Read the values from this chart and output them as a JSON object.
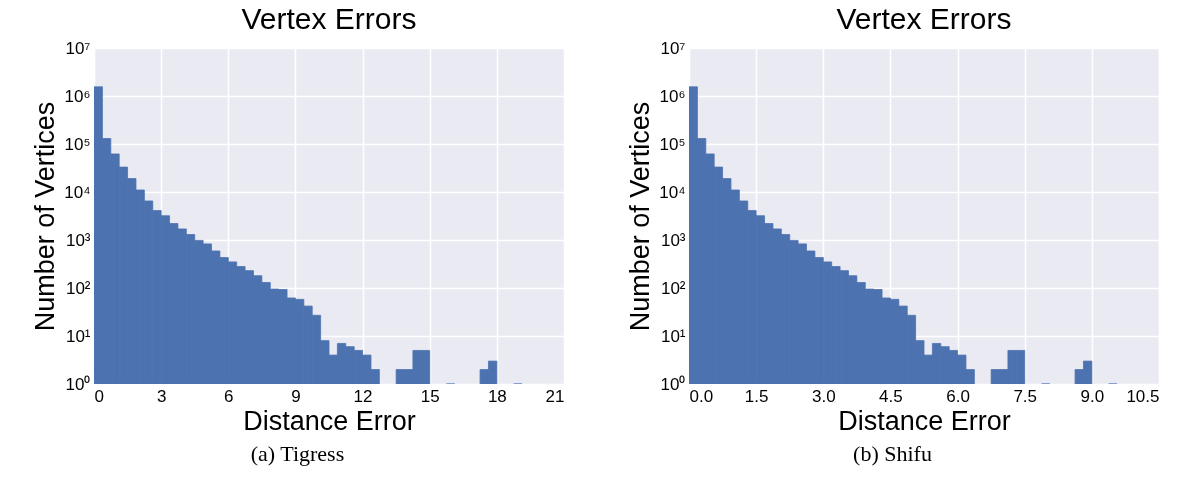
{
  "chart_data": [
    {
      "type": "histogram",
      "title": "Vertex Errors",
      "xlabel": "Distance Error",
      "ylabel": "Number of Vertices",
      "color": "#4c72b0",
      "log": "y",
      "grid": true,
      "bins": [
        0,
        0.375,
        0.75,
        1.125,
        1.5,
        1.875,
        2.25,
        2.625,
        3,
        3.375,
        3.75,
        4.125,
        4.5,
        4.875,
        5.25,
        5.625,
        6,
        6.375,
        6.75,
        7.125,
        7.5,
        7.875,
        8.25,
        8.625,
        9,
        9.375,
        9.75,
        10.125,
        10.5,
        10.875,
        11.25,
        11.625,
        12,
        12.375,
        12.75,
        13.125,
        13.5,
        13.875,
        14.25,
        14.625,
        15,
        15.375,
        15.75,
        16.125,
        16.5,
        16.875,
        17.25,
        17.625,
        18,
        18.375,
        18.75,
        19.125
      ],
      "values": [
        1550000,
        130000,
        62000,
        33000,
        19000,
        11000,
        6500,
        4100,
        3200,
        2200,
        1700,
        1300,
        980,
        830,
        590,
        430,
        350,
        280,
        230,
        180,
        130,
        95,
        93,
        62,
        58,
        42,
        27,
        8,
        4,
        7,
        6,
        5,
        4,
        2,
        null,
        null,
        2,
        2,
        5,
        5,
        null,
        null,
        1,
        null,
        null,
        null,
        2,
        3,
        null,
        null,
        1
      ],
      "xlim": [
        0,
        21
      ],
      "xticks": [
        0,
        3,
        6,
        9,
        12,
        15,
        18,
        21
      ],
      "ylim": [
        1,
        10000000
      ],
      "yticks": [
        {
          "value": 1,
          "label": "10⁰"
        },
        {
          "value": 10,
          "label": "10¹"
        },
        {
          "value": 100,
          "label": "10²"
        },
        {
          "value": 1000,
          "label": "10³"
        },
        {
          "value": 10000,
          "label": "10⁴"
        },
        {
          "value": 100000,
          "label": "10⁵"
        },
        {
          "value": 1000000,
          "label": "10⁶"
        },
        {
          "value": 10000000,
          "label": "10⁷"
        }
      ],
      "annotations": [
        "(a) Tigress"
      ]
    },
    {
      "type": "histogram",
      "title": "Vertex Errors",
      "xlabel": "Distance Error",
      "ylabel": "Number of Vertices",
      "color": "#4c72b0",
      "log": "y",
      "grid": true,
      "bins": [
        0,
        0.1875,
        0.375,
        0.5625,
        0.75,
        0.9375,
        1.125,
        1.3125,
        1.5,
        1.6875,
        1.875,
        2.0625,
        2.25,
        2.4375,
        2.625,
        2.8125,
        3,
        3.1875,
        3.375,
        3.5625,
        3.75,
        3.9375,
        4.125,
        4.3125,
        4.5,
        4.6875,
        4.875,
        5.0625,
        5.25,
        5.4375,
        5.625,
        5.8125,
        6,
        6.1875,
        6.375,
        6.5625,
        6.75,
        6.9375,
        7.125,
        7.3125,
        7.5,
        7.6875,
        7.875,
        8.0625,
        8.25,
        8.4375,
        8.625,
        8.8125,
        9,
        9.1875,
        9.375,
        9.5625
      ],
      "values": [
        1550000,
        130000,
        62000,
        33000,
        19000,
        11000,
        6500,
        4100,
        3200,
        2200,
        1700,
        1300,
        980,
        830,
        590,
        430,
        350,
        280,
        230,
        180,
        130,
        95,
        93,
        62,
        58,
        42,
        27,
        8,
        4,
        7,
        6,
        5,
        4,
        2,
        null,
        null,
        2,
        2,
        5,
        5,
        null,
        null,
        1,
        null,
        null,
        null,
        2,
        3,
        null,
        null,
        1
      ],
      "xlim": [
        0,
        10.5
      ],
      "xticks": [
        {
          "value": 0,
          "label": "0.0"
        },
        {
          "value": 1.5,
          "label": "1.5"
        },
        {
          "value": 3,
          "label": "3.0"
        },
        {
          "value": 4.5,
          "label": "4.5"
        },
        {
          "value": 6,
          "label": "6.0"
        },
        {
          "value": 7.5,
          "label": "7.5"
        },
        {
          "value": 9,
          "label": "9.0"
        },
        {
          "value": 10.5,
          "label": "10.5"
        }
      ],
      "ylim": [
        1,
        10000000
      ],
      "yticks": [
        {
          "value": 1,
          "label": "10⁰"
        },
        {
          "value": 10,
          "label": "10¹"
        },
        {
          "value": 100,
          "label": "10²"
        },
        {
          "value": 1000,
          "label": "10³"
        },
        {
          "value": 10000,
          "label": "10⁴"
        },
        {
          "value": 100000,
          "label": "10⁵"
        },
        {
          "value": 1000000,
          "label": "10⁶"
        },
        {
          "value": 10000000,
          "label": "10⁷"
        }
      ],
      "annotations": [
        "(b) Shifu"
      ]
    }
  ]
}
